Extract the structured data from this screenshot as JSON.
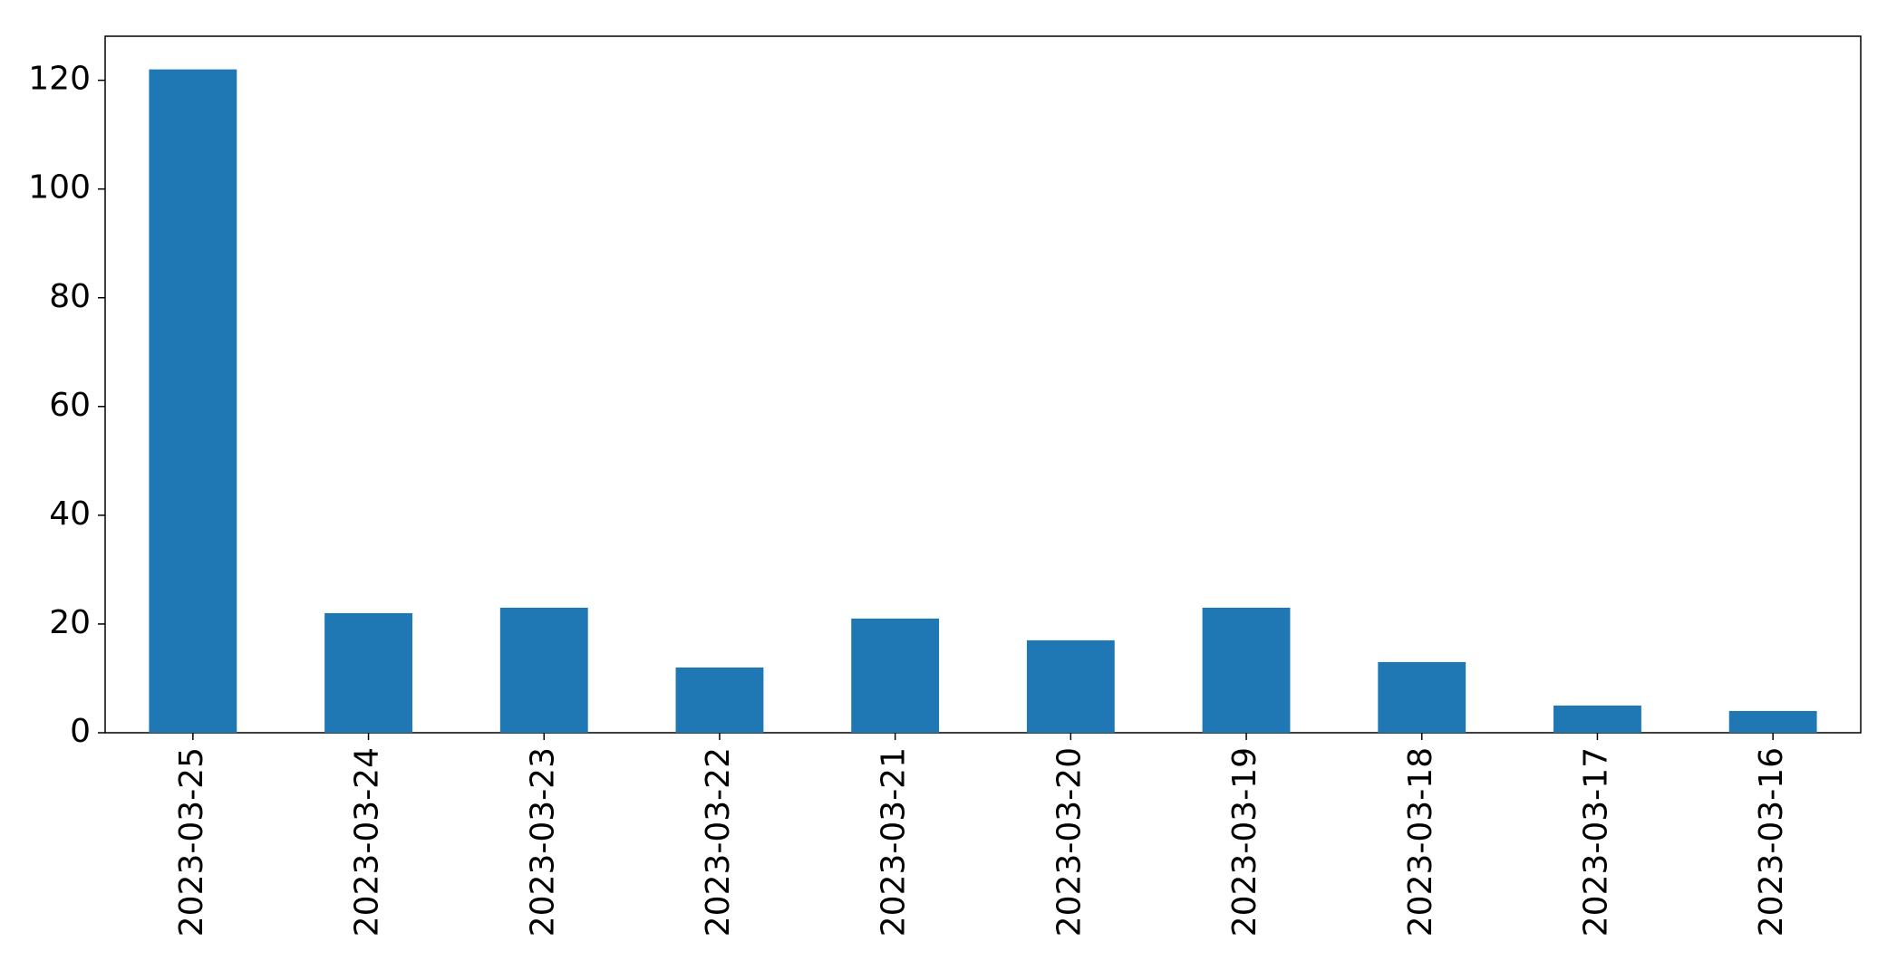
{
  "chart_data": {
    "type": "bar",
    "categories": [
      "2023-03-25",
      "2023-03-24",
      "2023-03-23",
      "2023-03-22",
      "2023-03-21",
      "2023-03-20",
      "2023-03-19",
      "2023-03-18",
      "2023-03-17",
      "2023-03-16"
    ],
    "values": [
      122,
      22,
      23,
      12,
      21,
      17,
      23,
      13,
      5,
      4
    ],
    "color": "#1f77b4",
    "ylim": [
      0,
      128.1
    ],
    "yticks": [
      0,
      20,
      40,
      60,
      80,
      100,
      120
    ],
    "grid": false
  }
}
